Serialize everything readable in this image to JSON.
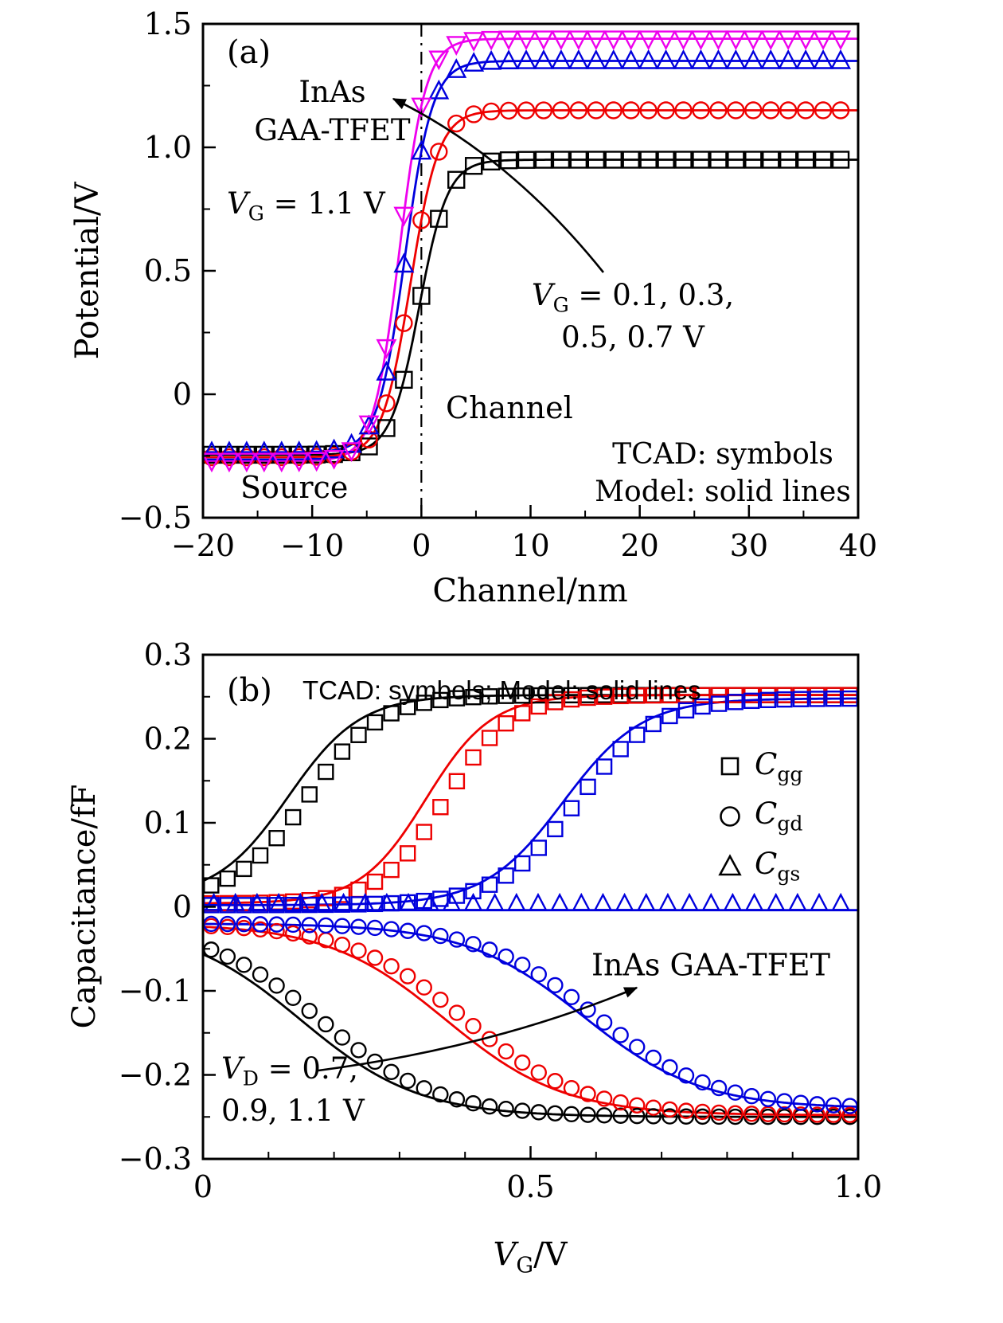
{
  "panel_a": {
    "tag": "(a)",
    "ylabel": "Potential/V",
    "xlabel": "Channel/nm",
    "device_line1": "InAs",
    "device_line2": "GAA-TFET",
    "vg_label": {
      "v": "V",
      "sub": "G",
      "rest": " = 1.1 V"
    },
    "vg_range": {
      "v": "V",
      "sub": "G",
      "rest": " = 0.1, 0.3,",
      "line2": "0.5, 0.7 V"
    },
    "channel_label": "Channel",
    "source_label": "Source",
    "tcad_label": "TCAD: symbols",
    "model_label": "Model: solid lines"
  },
  "panel_b": {
    "tag": "(b)",
    "header": "TCAD: symbols; Model: solid lines",
    "ylabel": "Capacitance/fF",
    "xlabel": {
      "v": "V",
      "sub": "G",
      "rest": "/V"
    },
    "device_label": "InAs GAA-TFET",
    "vd_label": {
      "v": "V",
      "sub": "D",
      "rest": " = 0.7,",
      "line2": "0.9, 1.1 V"
    },
    "legend": [
      {
        "symbol": "square",
        "c": "C",
        "sub": "gg"
      },
      {
        "symbol": "circle",
        "c": "C",
        "sub": "gd"
      },
      {
        "symbol": "triangle",
        "c": "C",
        "sub": "gs"
      }
    ]
  },
  "chart_data": [
    {
      "id": "panel-a-potential-profile",
      "type": "line",
      "title": "InAs GAA-TFET potential profile, TCAD symbols vs model solid lines",
      "xlabel": "Channel/nm",
      "ylabel": "Potential/V",
      "xlim": [
        -20,
        40
      ],
      "ylim": [
        -0.5,
        1.5
      ],
      "xticks": [
        {
          "v": -20,
          "label": "−20"
        },
        {
          "v": -10,
          "label": "−10"
        },
        {
          "v": 0,
          "label": "0"
        },
        {
          "v": 10,
          "label": "10"
        },
        {
          "v": 20,
          "label": "20"
        },
        {
          "v": 30,
          "label": "30"
        },
        {
          "v": 40,
          "label": "40"
        }
      ],
      "xminor": [
        -15,
        -5,
        5,
        15,
        25,
        35
      ],
      "yticks": [
        {
          "v": -0.5,
          "label": "−0.5"
        },
        {
          "v": 0,
          "label": "0"
        },
        {
          "v": 0.5,
          "label": "0.5"
        },
        {
          "v": 1.0,
          "label": "1.0"
        },
        {
          "v": 1.5,
          "label": "1.5"
        }
      ],
      "yminor": [
        -0.25,
        0.25,
        0.75,
        1.25
      ],
      "vline_x": 0,
      "symbol_step": 1.6,
      "symbol_size": 10,
      "gate_voltages_annotated_V": [
        0.1,
        0.3,
        0.5,
        0.7,
        1.1
      ],
      "series": [
        {
          "name": "black-squares",
          "color": "#000000",
          "symbol": "square",
          "low": -0.245,
          "high": 0.95,
          "center": -0.2,
          "width": 1.3,
          "anchor_points": [
            [
              -20,
              -0.25
            ],
            [
              -5,
              -0.22
            ],
            [
              0,
              0.4
            ],
            [
              2,
              0.76
            ],
            [
              5,
              0.93
            ],
            [
              40,
              0.95
            ]
          ]
        },
        {
          "name": "red-circles",
          "color": "#ee0000",
          "symbol": "circle",
          "low": -0.255,
          "high": 1.15,
          "center": -1.0,
          "width": 1.3,
          "anchor_points": [
            [
              -20,
              -0.25
            ],
            [
              -5,
              -0.19
            ],
            [
              0,
              0.71
            ],
            [
              3,
              1.09
            ],
            [
              10,
              1.15
            ],
            [
              40,
              1.15
            ]
          ]
        },
        {
          "name": "blue-up-triangles",
          "color": "#0000dd",
          "symbol": "triangle-up",
          "low": -0.235,
          "high": 1.35,
          "center": -1.5,
          "width": 1.25,
          "anchor_points": [
            [
              -20,
              -0.24
            ],
            [
              -5,
              -0.2
            ],
            [
              0,
              0.98
            ],
            [
              3,
              1.31
            ],
            [
              10,
              1.35
            ],
            [
              40,
              1.35
            ]
          ]
        },
        {
          "name": "magenta-down-triangles",
          "color": "#ee00ee",
          "symbol": "triangle-down",
          "low": -0.27,
          "high": 1.44,
          "center": -2.0,
          "width": 1.2,
          "anchor_points": [
            [
              -20,
              -0.27
            ],
            [
              -5,
              -0.19
            ],
            [
              0,
              1.17
            ],
            [
              3,
              1.41
            ],
            [
              10,
              1.44
            ],
            [
              40,
              1.44
            ]
          ]
        }
      ]
    },
    {
      "id": "panel-b-capacitance",
      "type": "line",
      "title": "InAs GAA-TFET capacitances vs gate voltage, VD = 0.7, 0.9, 1.1 V",
      "xlabel": "VG/V",
      "ylabel": "Capacitance/fF",
      "xlim": [
        0,
        1.0
      ],
      "ylim": [
        -0.3,
        0.3
      ],
      "xticks": [
        {
          "v": 0,
          "label": "0"
        },
        {
          "v": 0.5,
          "label": "0.5"
        },
        {
          "v": 1.0,
          "label": "1.0"
        }
      ],
      "xminor": [
        0.1,
        0.2,
        0.3,
        0.4,
        0.6,
        0.7,
        0.8,
        0.9
      ],
      "yticks": [
        {
          "v": -0.3,
          "label": "−0.3"
        },
        {
          "v": -0.2,
          "label": "−0.2"
        },
        {
          "v": -0.1,
          "label": "−0.1"
        },
        {
          "v": 0,
          "label": "0"
        },
        {
          "v": 0.1,
          "label": "0.1"
        },
        {
          "v": 0.2,
          "label": "0.2"
        },
        {
          "v": 0.3,
          "label": "0.3"
        }
      ],
      "yminor": [
        -0.25,
        -0.15,
        -0.05,
        0.05,
        0.15,
        0.25
      ],
      "symbol_step": 0.025,
      "symbol_size": 9,
      "drain_voltages_V": [
        0.7,
        0.9,
        1.1
      ],
      "series": [
        {
          "name": "Cgg-VD-0.7",
          "color": "#000000",
          "symbol": "square",
          "low": 0.01,
          "high": 0.252,
          "center": 0.16,
          "width": 0.055,
          "line_center": 0.13,
          "anchor_points": [
            [
              0,
              0.02
            ],
            [
              0.1,
              0.07
            ],
            [
              0.2,
              0.17
            ],
            [
              0.3,
              0.235
            ],
            [
              0.5,
              0.25
            ],
            [
              1.0,
              0.25
            ]
          ]
        },
        {
          "name": "Cgg-VD-0.9",
          "color": "#ee0000",
          "symbol": "square",
          "low": 0.004,
          "high": 0.252,
          "center": 0.37,
          "width": 0.05,
          "line_center": 0.34,
          "anchor_points": [
            [
              0,
              0.004
            ],
            [
              0.3,
              0.05
            ],
            [
              0.4,
              0.16
            ],
            [
              0.5,
              0.235
            ],
            [
              1.0,
              0.25
            ]
          ]
        },
        {
          "name": "Cgg-VD-1.1",
          "color": "#0000dd",
          "symbol": "square",
          "low": 0.002,
          "high": 0.248,
          "center": 0.57,
          "width": 0.06,
          "line_center": 0.55,
          "anchor_points": [
            [
              0,
              0.002
            ],
            [
              0.5,
              0.06
            ],
            [
              0.6,
              0.16
            ],
            [
              0.7,
              0.22
            ],
            [
              1.0,
              0.24
            ]
          ]
        },
        {
          "name": "Cgd-VD-0.7",
          "color": "#000000",
          "symbol": "circle",
          "low": -0.02,
          "high": -0.25,
          "center": 0.18,
          "width": 0.09,
          "line_center": 0.15,
          "anchor_points": [
            [
              0,
              -0.05
            ],
            [
              0.1,
              -0.09
            ],
            [
              0.2,
              -0.15
            ],
            [
              0.3,
              -0.2
            ],
            [
              0.5,
              -0.24
            ],
            [
              1.0,
              -0.25
            ]
          ]
        },
        {
          "name": "Cgd-VD-0.9",
          "color": "#ee0000",
          "symbol": "circle",
          "low": -0.02,
          "high": -0.248,
          "center": 0.4,
          "width": 0.09,
          "line_center": 0.37,
          "anchor_points": [
            [
              0,
              -0.025
            ],
            [
              0.3,
              -0.07
            ],
            [
              0.4,
              -0.135
            ],
            [
              0.5,
              -0.18
            ],
            [
              0.7,
              -0.22
            ],
            [
              1.0,
              -0.245
            ]
          ]
        },
        {
          "name": "Cgd-VD-1.1",
          "color": "#0000dd",
          "symbol": "circle",
          "low": -0.02,
          "high": -0.24,
          "center": 0.6,
          "width": 0.09,
          "line_center": 0.58,
          "anchor_points": [
            [
              0,
              -0.02
            ],
            [
              0.5,
              -0.08
            ],
            [
              0.6,
              -0.135
            ],
            [
              0.7,
              -0.18
            ],
            [
              0.9,
              -0.225
            ],
            [
              1.0,
              -0.235
            ]
          ]
        },
        {
          "name": "Cgs-all-VD",
          "color": "#0000dd",
          "symbol": "triangle-up",
          "const": 0.004,
          "line_const": -0.004,
          "symbol_step_mult": 1.32,
          "anchor_points": [
            [
              0,
              0.004
            ],
            [
              0.5,
              0.004
            ],
            [
              1.0,
              0.004
            ]
          ]
        }
      ]
    }
  ]
}
